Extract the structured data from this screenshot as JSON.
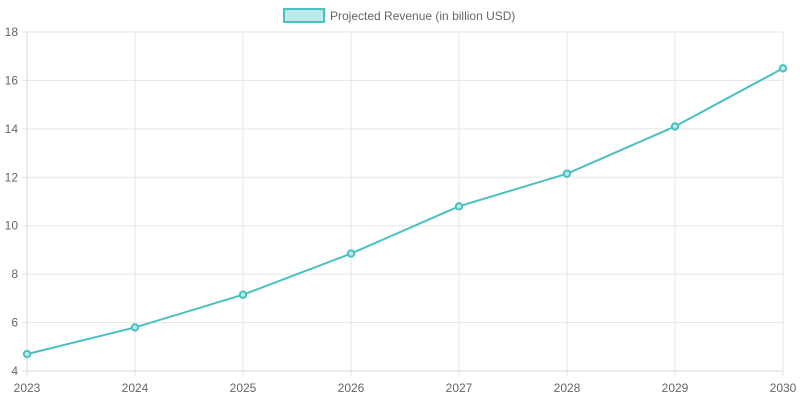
{
  "chart_data": {
    "type": "line",
    "x": [
      "2023",
      "2024",
      "2025",
      "2026",
      "2027",
      "2028",
      "2029",
      "2030"
    ],
    "series": [
      {
        "name": "Projected Revenue (in billion USD)",
        "values": [
          4.7,
          5.8,
          7.15,
          8.85,
          10.8,
          12.15,
          14.1,
          16.5
        ],
        "color": "#4bc0c0",
        "fill": "#bfe9e9"
      }
    ],
    "ylim": [
      4,
      18
    ],
    "yticks": [
      "4",
      "6",
      "8",
      "10",
      "12",
      "14",
      "16",
      "18"
    ],
    "grid": true,
    "legend_position": "top-center"
  }
}
